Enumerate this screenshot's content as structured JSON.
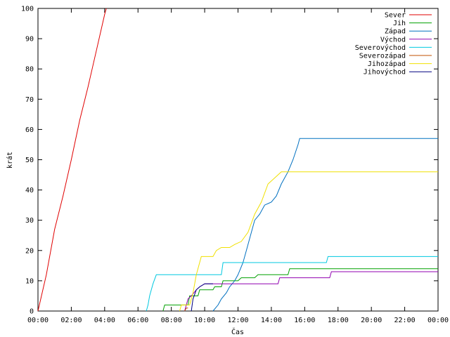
{
  "chart_data": {
    "type": "line",
    "xlabel": "Čas",
    "ylabel": "krát",
    "xlim": [
      0,
      24
    ],
    "ylim": [
      0,
      100
    ],
    "x_ticks": [
      {
        "value": 0,
        "label": "00:00"
      },
      {
        "value": 2,
        "label": "02:00"
      },
      {
        "value": 4,
        "label": "04:00"
      },
      {
        "value": 6,
        "label": "06:00"
      },
      {
        "value": 8,
        "label": "08:00"
      },
      {
        "value": 10,
        "label": "10:00"
      },
      {
        "value": 12,
        "label": "12:00"
      },
      {
        "value": 14,
        "label": "14:00"
      },
      {
        "value": 16,
        "label": "16:00"
      },
      {
        "value": 18,
        "label": "18:00"
      },
      {
        "value": 20,
        "label": "20:00"
      },
      {
        "value": 22,
        "label": "22:00"
      },
      {
        "value": 24,
        "label": "00:00"
      }
    ],
    "y_ticks": [
      0,
      10,
      20,
      30,
      40,
      50,
      60,
      70,
      80,
      90,
      100
    ],
    "grid": false,
    "legend_position": "top-right",
    "series": [
      {
        "name": "Sever",
        "color": "#e00000",
        "points": [
          [
            0,
            0
          ],
          [
            0.5,
            12
          ],
          [
            1,
            27
          ],
          [
            1.5,
            38
          ],
          [
            2,
            50
          ],
          [
            2.5,
            63
          ],
          [
            3,
            74
          ],
          [
            3.5,
            86
          ],
          [
            4,
            98
          ],
          [
            4.1,
            100
          ]
        ]
      },
      {
        "name": "Jih",
        "color": "#00a000",
        "points": [
          [
            7.5,
            0
          ],
          [
            7.6,
            2
          ],
          [
            9,
            2
          ],
          [
            9.1,
            5
          ],
          [
            9.6,
            5
          ],
          [
            9.7,
            7
          ],
          [
            10.5,
            7
          ],
          [
            10.6,
            8
          ],
          [
            11,
            8
          ],
          [
            11.1,
            10
          ],
          [
            12,
            10
          ],
          [
            12.2,
            11
          ],
          [
            13,
            11
          ],
          [
            13.2,
            12
          ],
          [
            15,
            12
          ],
          [
            15.1,
            14
          ],
          [
            24,
            14
          ]
        ]
      },
      {
        "name": "Západ",
        "color": "#0070c0",
        "points": [
          [
            10.5,
            0
          ],
          [
            10.8,
            2
          ],
          [
            11,
            4
          ],
          [
            11.3,
            6
          ],
          [
            11.5,
            8
          ],
          [
            11.8,
            10
          ],
          [
            12,
            12
          ],
          [
            12.3,
            16
          ],
          [
            12.5,
            20
          ],
          [
            12.8,
            26
          ],
          [
            13,
            30
          ],
          [
            13.3,
            32
          ],
          [
            13.6,
            35
          ],
          [
            14,
            36
          ],
          [
            14.3,
            38
          ],
          [
            14.6,
            42
          ],
          [
            15,
            46
          ],
          [
            15.3,
            50
          ],
          [
            15.6,
            55
          ],
          [
            15.7,
            57
          ],
          [
            24,
            57
          ]
        ]
      },
      {
        "name": "Východ",
        "color": "#9000b0",
        "points": [
          [
            8.8,
            0
          ],
          [
            9,
            4
          ],
          [
            9.2,
            5
          ],
          [
            9.5,
            7
          ],
          [
            9.7,
            8
          ],
          [
            10,
            9
          ],
          [
            14.4,
            9
          ],
          [
            14.5,
            11
          ],
          [
            17.5,
            11
          ],
          [
            17.6,
            13
          ],
          [
            24,
            13
          ]
        ]
      },
      {
        "name": "Severovýchod",
        "color": "#00c8e0",
        "points": [
          [
            6.5,
            0
          ],
          [
            6.6,
            2
          ],
          [
            6.7,
            5
          ],
          [
            6.9,
            9
          ],
          [
            7.1,
            12
          ],
          [
            11,
            12
          ],
          [
            11.1,
            16
          ],
          [
            17.3,
            16
          ],
          [
            17.4,
            18
          ],
          [
            24,
            18
          ]
        ]
      },
      {
        "name": "Severozápad",
        "color": "#c05000",
        "points": [
          [
            8.8,
            0
          ],
          [
            8.9,
            1
          ],
          [
            9,
            1
          ]
        ]
      },
      {
        "name": "Jihozápad",
        "color": "#f0e000",
        "points": [
          [
            8.5,
            0
          ],
          [
            8.6,
            2
          ],
          [
            9.1,
            2
          ],
          [
            9.3,
            6
          ],
          [
            9.5,
            12
          ],
          [
            9.8,
            18
          ],
          [
            10.5,
            18
          ],
          [
            10.7,
            20
          ],
          [
            11,
            21
          ],
          [
            11.5,
            21
          ],
          [
            11.8,
            22
          ],
          [
            12.2,
            23
          ],
          [
            12.6,
            26
          ],
          [
            13,
            32
          ],
          [
            13.4,
            36
          ],
          [
            13.8,
            42
          ],
          [
            14.2,
            44
          ],
          [
            14.6,
            46
          ],
          [
            24,
            46
          ]
        ]
      },
      {
        "name": "Jihovýchod",
        "color": "#000080",
        "points": [
          [
            9.2,
            0
          ],
          [
            9.3,
            4
          ],
          [
            9.5,
            7
          ],
          [
            9.7,
            8
          ],
          [
            10,
            9
          ],
          [
            10.5,
            9
          ]
        ]
      }
    ]
  }
}
